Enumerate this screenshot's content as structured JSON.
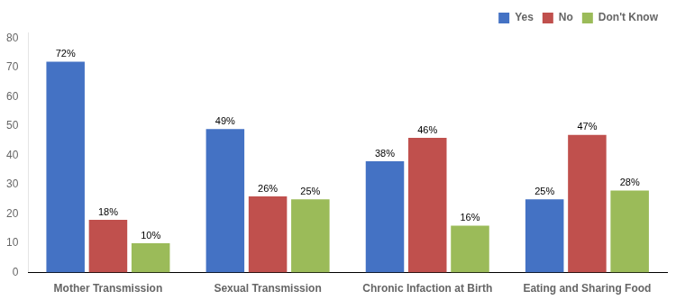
{
  "chart_data": {
    "type": "bar",
    "categories": [
      "Mother Transmission",
      "Sexual Transmission",
      "Chronic Infaction at Birth",
      "Eating and Sharing Food"
    ],
    "series": [
      {
        "name": "Yes",
        "color": "#4472C4",
        "values": [
          72,
          49,
          38,
          25
        ],
        "value_labels": [
          "72%",
          "49%",
          "38%",
          "25%"
        ]
      },
      {
        "name": "No",
        "color": "#C0504D",
        "values": [
          18,
          26,
          46,
          47
        ],
        "value_labels": [
          "18%",
          "26%",
          "46%",
          "47%"
        ]
      },
      {
        "name": "Don't Know",
        "color": "#9BBB59",
        "values": [
          10,
          25,
          16,
          28
        ],
        "value_labels": [
          "10%",
          "25%",
          "16%",
          "28%"
        ]
      }
    ],
    "ylim": [
      0,
      82
    ],
    "yticks": [
      0,
      10,
      20,
      30,
      40,
      50,
      60,
      70,
      80
    ],
    "grid": false,
    "legend": "upper right",
    "data_labels": true
  }
}
